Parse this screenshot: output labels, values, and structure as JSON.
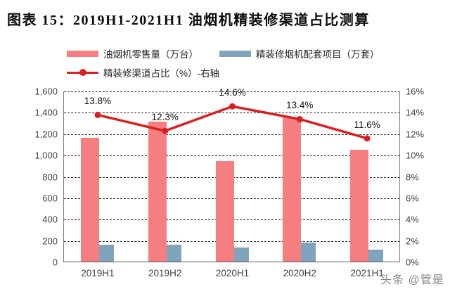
{
  "title": "图表 15：2019H1-2021H1 油烟机精装修渠道占比测算",
  "watermark": "头条 @管是",
  "colors": {
    "bar_retail": "#F57E80",
    "bar_project": "#7FA4BB",
    "line": "#D92121",
    "title_rule": "#2A3A55"
  },
  "legend": [
    {
      "label": "油烟机零售量（万台）",
      "type": "bar",
      "color_key": "bar_retail"
    },
    {
      "label": "精装修烟机配套项目（万套）",
      "type": "bar",
      "color_key": "bar_project"
    },
    {
      "label": "精装修渠道占比（%）-右轴",
      "type": "line",
      "color_key": "line"
    }
  ],
  "chart_data": {
    "type": "bar",
    "subtype": "bar-line-combo",
    "categories": [
      "2019H1",
      "2019H2",
      "2020H1",
      "2020H2",
      "2021H1"
    ],
    "series": [
      {
        "name": "油烟机零售量（万台）",
        "type": "bar",
        "axis": "left",
        "color_key": "bar_retail",
        "values": [
          1160,
          1310,
          940,
          1350,
          1050
        ]
      },
      {
        "name": "精装修烟机配套项目（万套）",
        "type": "bar",
        "axis": "left",
        "color_key": "bar_project",
        "values": [
          155,
          155,
          130,
          175,
          110
        ]
      },
      {
        "name": "精装修渠道占比（%）-右轴",
        "type": "line",
        "axis": "right",
        "color_key": "line",
        "values": [
          13.8,
          12.3,
          14.6,
          13.4,
          11.6
        ],
        "point_labels": [
          "13.8%",
          "12.3%",
          "14.6%",
          "13.4%",
          "11.6%"
        ]
      }
    ],
    "left_axis": {
      "min": 0,
      "max": 1600,
      "step": 200,
      "tick_labels": [
        "0",
        "200",
        "400",
        "600",
        "800",
        "1,000",
        "1,200",
        "1,400",
        "1,600"
      ]
    },
    "right_axis": {
      "min": 0,
      "max": 16,
      "step": 2,
      "tick_labels": [
        "0%",
        "2%",
        "4%",
        "6%",
        "8%",
        "10%",
        "12%",
        "14%",
        "16%"
      ]
    },
    "grid": true,
    "grid_style": "dashed",
    "legend_position": "top"
  }
}
